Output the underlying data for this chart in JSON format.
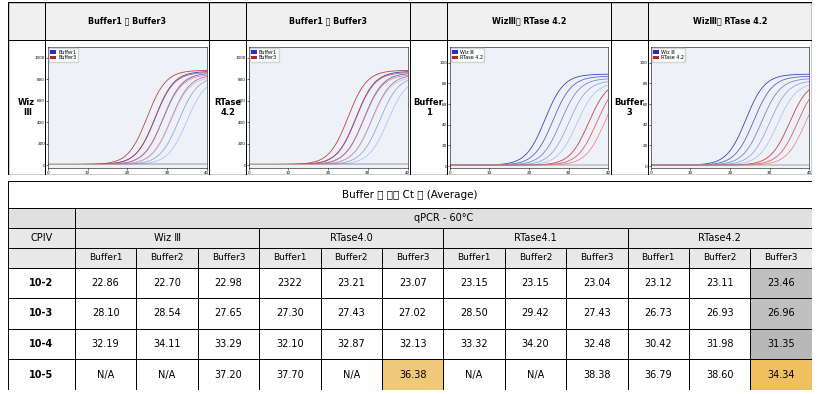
{
  "chart_col_headers": [
    "Buffer1 와 Buffer3",
    "Buffer1 와 Buffer3",
    "WizⅢ와 RTase 4.2",
    "WizⅢ와 RTase 4.2"
  ],
  "row_label": "Wiz\nⅢ",
  "between_labels": [
    "RTase\n4.2",
    "Buffer\n1",
    "Buffer\n3"
  ],
  "title_table": "Buffer 에 따른 Ct 값 (Average)",
  "subtitle_table": "qPCR - 60°C",
  "group_headers": [
    "Wiz Ⅲ",
    "RTase4.0",
    "RTase4.1",
    "RTase4.2"
  ],
  "cpiv_rows": [
    "10-2",
    "10-3",
    "10-4",
    "10-5"
  ],
  "table_data": [
    [
      "22.86",
      "22.70",
      "22.98",
      "2322",
      "23.21",
      "23.07",
      "23.15",
      "23.15",
      "23.04",
      "23.12",
      "23.11",
      "23.46"
    ],
    [
      "28.10",
      "28.54",
      "27.65",
      "27.30",
      "27.43",
      "27.02",
      "28.50",
      "29.42",
      "27.43",
      "26.73",
      "26.93",
      "26.96"
    ],
    [
      "32.19",
      "34.11",
      "33.29",
      "32.10",
      "32.87",
      "32.13",
      "33.32",
      "34.20",
      "32.48",
      "30.42",
      "31.98",
      "31.35"
    ],
    [
      "N/A",
      "N/A",
      "37.20",
      "37.70",
      "N/A",
      "36.38",
      "N/A",
      "N/A",
      "38.38",
      "36.79",
      "38.60",
      "34.34"
    ]
  ],
  "highlighted_cells": [
    [
      0,
      11,
      "#c0c0c0"
    ],
    [
      1,
      11,
      "#c0c0c0"
    ],
    [
      2,
      11,
      "#b8b8b8"
    ],
    [
      3,
      5,
      "#f0c878"
    ],
    [
      3,
      11,
      "#f0c060"
    ]
  ],
  "chart_legend1": [
    "Buffer1",
    "Buffer3"
  ],
  "chart_legend2": [
    "Wiz Ⅲ",
    "RTase 4.2"
  ],
  "header_bg": "#e0e0e0",
  "subheader_bg": "#e8e8e8",
  "title_bg": "#ffffff"
}
